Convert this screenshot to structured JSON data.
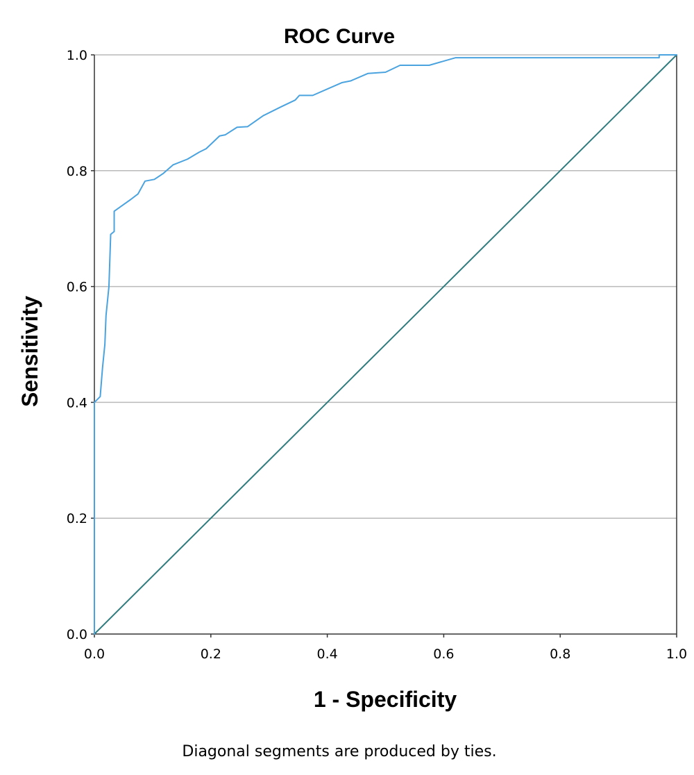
{
  "chart_data": {
    "type": "line",
    "title": "ROC Curve",
    "xlabel": "1 - Specificity",
    "ylabel": "Sensitivity",
    "xlim": [
      0.0,
      1.0
    ],
    "ylim": [
      0.0,
      1.0
    ],
    "x_ticks": [
      "0.0",
      "0.2",
      "0.4",
      "0.6",
      "0.8",
      "1.0"
    ],
    "y_ticks": [
      "0.0",
      "0.2",
      "0.4",
      "0.6",
      "0.8",
      "1.0"
    ],
    "grid": "horizontal",
    "footnote": "Diagonal segments are produced by ties.",
    "series": [
      {
        "color": "#4aa3df",
        "points": [
          [
            0.0,
            0.0
          ],
          [
            0.0,
            0.4
          ],
          [
            0.01,
            0.41
          ],
          [
            0.014,
            0.46
          ],
          [
            0.018,
            0.5
          ],
          [
            0.02,
            0.55
          ],
          [
            0.025,
            0.6
          ],
          [
            0.028,
            0.69
          ],
          [
            0.034,
            0.695
          ],
          [
            0.034,
            0.73
          ],
          [
            0.048,
            0.74
          ],
          [
            0.062,
            0.75
          ],
          [
            0.075,
            0.76
          ],
          [
            0.087,
            0.782
          ],
          [
            0.103,
            0.785
          ],
          [
            0.118,
            0.795
          ],
          [
            0.135,
            0.81
          ],
          [
            0.16,
            0.82
          ],
          [
            0.18,
            0.832
          ],
          [
            0.192,
            0.838
          ],
          [
            0.215,
            0.86
          ],
          [
            0.225,
            0.862
          ],
          [
            0.245,
            0.875
          ],
          [
            0.263,
            0.876
          ],
          [
            0.29,
            0.895
          ],
          [
            0.32,
            0.91
          ],
          [
            0.345,
            0.922
          ],
          [
            0.352,
            0.93
          ],
          [
            0.375,
            0.93
          ],
          [
            0.425,
            0.952
          ],
          [
            0.44,
            0.955
          ],
          [
            0.47,
            0.968
          ],
          [
            0.5,
            0.97
          ],
          [
            0.525,
            0.982
          ],
          [
            0.575,
            0.982
          ],
          [
            0.62,
            0.995
          ],
          [
            0.97,
            0.995
          ],
          [
            0.97,
            1.0
          ],
          [
            1.0,
            1.0
          ]
        ]
      },
      {
        "color": "#2f7b7e",
        "points": [
          [
            0.0,
            0.0
          ],
          [
            1.0,
            1.0
          ]
        ]
      }
    ]
  }
}
